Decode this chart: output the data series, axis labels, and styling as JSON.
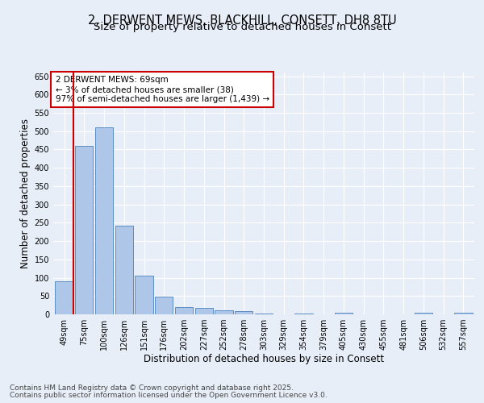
{
  "title_line1": "2, DERWENT MEWS, BLACKHILL, CONSETT, DH8 8TU",
  "title_line2": "Size of property relative to detached houses in Consett",
  "xlabel": "Distribution of detached houses by size in Consett",
  "ylabel": "Number of detached properties",
  "categories": [
    "49sqm",
    "75sqm",
    "100sqm",
    "126sqm",
    "151sqm",
    "176sqm",
    "202sqm",
    "227sqm",
    "252sqm",
    "278sqm",
    "303sqm",
    "329sqm",
    "354sqm",
    "379sqm",
    "405sqm",
    "430sqm",
    "455sqm",
    "481sqm",
    "506sqm",
    "532sqm",
    "557sqm"
  ],
  "values": [
    90,
    460,
    510,
    243,
    106,
    48,
    20,
    18,
    12,
    8,
    3,
    0,
    3,
    0,
    5,
    0,
    0,
    0,
    5,
    0,
    4
  ],
  "bar_color": "#aec6e8",
  "bar_edge_color": "#5b8ec4",
  "highlight_line_color": "#cc0000",
  "annotation_text": "2 DERWENT MEWS: 69sqm\n← 3% of detached houses are smaller (38)\n97% of semi-detached houses are larger (1,439) →",
  "annotation_box_color": "#ffffff",
  "annotation_box_edge": "#cc0000",
  "background_color": "#e8eef8",
  "ylim": [
    0,
    660
  ],
  "yticks": [
    0,
    50,
    100,
    150,
    200,
    250,
    300,
    350,
    400,
    450,
    500,
    550,
    600,
    650
  ],
  "footer_line1": "Contains HM Land Registry data © Crown copyright and database right 2025.",
  "footer_line2": "Contains public sector information licensed under the Open Government Licence v3.0.",
  "title_fontsize": 10.5,
  "subtitle_fontsize": 9.5,
  "axis_label_fontsize": 8.5,
  "tick_fontsize": 7,
  "annotation_fontsize": 7.5,
  "footer_fontsize": 6.5
}
